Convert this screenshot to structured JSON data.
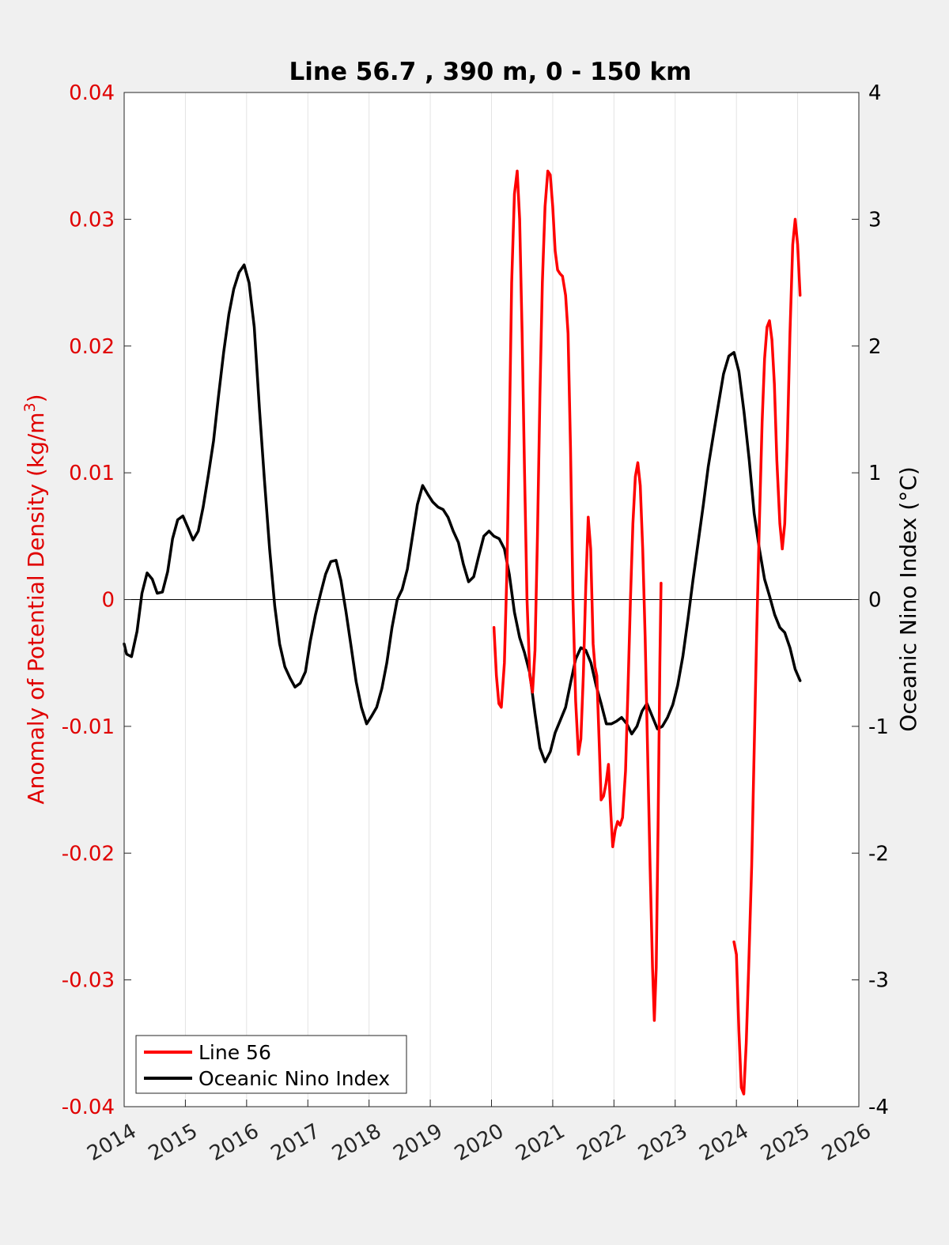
{
  "chart_data": {
    "type": "line",
    "title": "Line 56.7 , 390 m, 0 - 150 km",
    "ylabel_left": "Anomaly of Potential Density (kg/m",
    "ylabel_left_superscript": "3",
    "ylabel_left_close": ")",
    "ylabel_right": "Oceanic Nino Index (°C)",
    "xlim": [
      2014,
      2026
    ],
    "ylim_left": [
      -0.04,
      0.04
    ],
    "ylim_right": [
      -4,
      4
    ],
    "x_ticks": [
      "2014",
      "2015",
      "2016",
      "2017",
      "2018",
      "2019",
      "2020",
      "2021",
      "2022",
      "2023",
      "2024",
      "2025",
      "2026"
    ],
    "y_left_ticks": [
      "0.04",
      "0.03",
      "0.02",
      "0.01",
      "0",
      "-0.01",
      "-0.02",
      "-0.03",
      "-0.04"
    ],
    "y_right_ticks": [
      "4",
      "3",
      "2",
      "1",
      "0",
      "-1",
      "-2",
      "-3",
      "-4"
    ],
    "grid": "vertical",
    "legend_position": "bottom-left",
    "left_axis_color": "#e00000",
    "right_axis_color": "#000000",
    "series": [
      {
        "name": "Line 56",
        "axis": "left",
        "color": "#ff0000",
        "segments": [
          [
            [
              2020.04,
              -0.0022
            ],
            [
              2020.08,
              -0.006
            ],
            [
              2020.12,
              -0.0082
            ],
            [
              2020.16,
              -0.0085
            ],
            [
              2020.21,
              -0.005
            ],
            [
              2020.25,
              0.002
            ],
            [
              2020.29,
              0.013
            ],
            [
              2020.33,
              0.025
            ],
            [
              2020.375,
              0.032
            ],
            [
              2020.42,
              0.0338
            ],
            [
              2020.46,
              0.03
            ],
            [
              2020.5,
              0.021
            ],
            [
              2020.54,
              0.01
            ],
            [
              2020.58,
              0.0
            ],
            [
              2020.625,
              -0.006
            ],
            [
              2020.67,
              -0.0073
            ],
            [
              2020.71,
              -0.004
            ],
            [
              2020.75,
              0.005
            ],
            [
              2020.79,
              0.016
            ],
            [
              2020.83,
              0.025
            ],
            [
              2020.875,
              0.031
            ],
            [
              2020.92,
              0.0338
            ],
            [
              2020.96,
              0.0335
            ],
            [
              2021.0,
              0.031
            ],
            [
              2021.04,
              0.0275
            ],
            [
              2021.08,
              0.026
            ],
            [
              2021.12,
              0.0257
            ],
            [
              2021.16,
              0.0255
            ],
            [
              2021.21,
              0.024
            ],
            [
              2021.25,
              0.021
            ],
            [
              2021.29,
              0.012
            ],
            [
              2021.33,
              0.0
            ],
            [
              2021.375,
              -0.008
            ],
            [
              2021.42,
              -0.0122
            ],
            [
              2021.46,
              -0.011
            ],
            [
              2021.5,
              -0.006
            ],
            [
              2021.54,
              0.001
            ],
            [
              2021.58,
              0.0065
            ],
            [
              2021.62,
              0.004
            ],
            [
              2021.66,
              -0.0035
            ],
            [
              2021.69,
              -0.0053
            ],
            [
              2021.72,
              -0.006
            ],
            [
              2021.76,
              -0.0115
            ],
            [
              2021.79,
              -0.0158
            ],
            [
              2021.83,
              -0.0155
            ],
            [
              2021.87,
              -0.0145
            ],
            [
              2021.91,
              -0.013
            ],
            [
              2021.95,
              -0.017
            ],
            [
              2021.98,
              -0.0195
            ],
            [
              2022.02,
              -0.0182
            ],
            [
              2022.06,
              -0.0175
            ],
            [
              2022.1,
              -0.0178
            ],
            [
              2022.14,
              -0.0172
            ],
            [
              2022.19,
              -0.0135
            ],
            [
              2022.23,
              -0.007
            ],
            [
              2022.27,
              0.0
            ],
            [
              2022.31,
              0.006
            ],
            [
              2022.35,
              0.0097
            ],
            [
              2022.39,
              0.0108
            ],
            [
              2022.43,
              0.009
            ],
            [
              2022.47,
              0.004
            ],
            [
              2022.51,
              -0.003
            ],
            [
              2022.55,
              -0.012
            ],
            [
              2022.59,
              -0.021
            ],
            [
              2022.63,
              -0.029
            ],
            [
              2022.66,
              -0.0332
            ],
            [
              2022.69,
              -0.029
            ],
            [
              2022.72,
              -0.018
            ],
            [
              2022.75,
              -0.005
            ],
            [
              2022.77,
              0.0013
            ]
          ],
          [
            [
              2023.96,
              -0.027
            ],
            [
              2024.0,
              -0.028
            ],
            [
              2024.04,
              -0.034
            ],
            [
              2024.08,
              -0.0385
            ],
            [
              2024.12,
              -0.039
            ],
            [
              2024.16,
              -0.035
            ],
            [
              2024.2,
              -0.029
            ],
            [
              2024.25,
              -0.021
            ],
            [
              2024.29,
              -0.012
            ],
            [
              2024.33,
              -0.003
            ],
            [
              2024.375,
              0.006
            ],
            [
              2024.42,
              0.014
            ],
            [
              2024.46,
              0.019
            ],
            [
              2024.5,
              0.0215
            ],
            [
              2024.54,
              0.022
            ],
            [
              2024.58,
              0.0205
            ],
            [
              2024.62,
              0.017
            ],
            [
              2024.66,
              0.011
            ],
            [
              2024.71,
              0.006
            ],
            [
              2024.75,
              0.004
            ],
            [
              2024.79,
              0.006
            ],
            [
              2024.83,
              0.012
            ],
            [
              2024.875,
              0.021
            ],
            [
              2024.92,
              0.028
            ],
            [
              2024.96,
              0.03
            ],
            [
              2025.0,
              0.028
            ],
            [
              2025.04,
              0.024
            ]
          ]
        ]
      },
      {
        "name": "Oceanic Nino Index",
        "axis": "right",
        "color": "#000000",
        "points": [
          [
            2014.0,
            -0.35
          ],
          [
            2014.04,
            -0.43
          ],
          [
            2014.12,
            -0.45
          ],
          [
            2014.21,
            -0.25
          ],
          [
            2014.29,
            0.05
          ],
          [
            2014.375,
            0.21
          ],
          [
            2014.46,
            0.16
          ],
          [
            2014.54,
            0.05
          ],
          [
            2014.625,
            0.06
          ],
          [
            2014.71,
            0.22
          ],
          [
            2014.79,
            0.48
          ],
          [
            2014.875,
            0.63
          ],
          [
            2014.96,
            0.66
          ],
          [
            2015.04,
            0.57
          ],
          [
            2015.125,
            0.47
          ],
          [
            2015.21,
            0.54
          ],
          [
            2015.29,
            0.73
          ],
          [
            2015.375,
            0.98
          ],
          [
            2015.46,
            1.25
          ],
          [
            2015.54,
            1.6
          ],
          [
            2015.625,
            1.95
          ],
          [
            2015.71,
            2.25
          ],
          [
            2015.79,
            2.45
          ],
          [
            2015.875,
            2.58
          ],
          [
            2015.96,
            2.64
          ],
          [
            2016.04,
            2.5
          ],
          [
            2016.125,
            2.15
          ],
          [
            2016.21,
            1.5
          ],
          [
            2016.29,
            0.95
          ],
          [
            2016.375,
            0.4
          ],
          [
            2016.46,
            -0.05
          ],
          [
            2016.54,
            -0.35
          ],
          [
            2016.625,
            -0.53
          ],
          [
            2016.71,
            -0.62
          ],
          [
            2016.79,
            -0.69
          ],
          [
            2016.875,
            -0.66
          ],
          [
            2016.96,
            -0.57
          ],
          [
            2017.04,
            -0.33
          ],
          [
            2017.125,
            -0.12
          ],
          [
            2017.21,
            0.05
          ],
          [
            2017.29,
            0.2
          ],
          [
            2017.375,
            0.3
          ],
          [
            2017.46,
            0.31
          ],
          [
            2017.54,
            0.15
          ],
          [
            2017.625,
            -0.1
          ],
          [
            2017.71,
            -0.38
          ],
          [
            2017.79,
            -0.65
          ],
          [
            2017.875,
            -0.85
          ],
          [
            2017.96,
            -0.98
          ],
          [
            2018.04,
            -0.92
          ],
          [
            2018.125,
            -0.85
          ],
          [
            2018.21,
            -0.7
          ],
          [
            2018.29,
            -0.5
          ],
          [
            2018.375,
            -0.22
          ],
          [
            2018.46,
            0.0
          ],
          [
            2018.54,
            0.08
          ],
          [
            2018.625,
            0.24
          ],
          [
            2018.71,
            0.5
          ],
          [
            2018.79,
            0.75
          ],
          [
            2018.875,
            0.9
          ],
          [
            2018.96,
            0.83
          ],
          [
            2019.04,
            0.77
          ],
          [
            2019.125,
            0.73
          ],
          [
            2019.21,
            0.71
          ],
          [
            2019.29,
            0.65
          ],
          [
            2019.375,
            0.54
          ],
          [
            2019.46,
            0.45
          ],
          [
            2019.54,
            0.28
          ],
          [
            2019.625,
            0.14
          ],
          [
            2019.71,
            0.18
          ],
          [
            2019.79,
            0.34
          ],
          [
            2019.875,
            0.5
          ],
          [
            2019.96,
            0.54
          ],
          [
            2020.04,
            0.5
          ],
          [
            2020.125,
            0.48
          ],
          [
            2020.21,
            0.4
          ],
          [
            2020.29,
            0.2
          ],
          [
            2020.375,
            -0.1
          ],
          [
            2020.46,
            -0.3
          ],
          [
            2020.54,
            -0.42
          ],
          [
            2020.625,
            -0.58
          ],
          [
            2020.71,
            -0.9
          ],
          [
            2020.79,
            -1.17
          ],
          [
            2020.875,
            -1.28
          ],
          [
            2020.96,
            -1.2
          ],
          [
            2021.04,
            -1.05
          ],
          [
            2021.125,
            -0.95
          ],
          [
            2021.21,
            -0.85
          ],
          [
            2021.29,
            -0.66
          ],
          [
            2021.375,
            -0.47
          ],
          [
            2021.46,
            -0.38
          ],
          [
            2021.54,
            -0.4
          ],
          [
            2021.625,
            -0.5
          ],
          [
            2021.71,
            -0.68
          ],
          [
            2021.79,
            -0.82
          ],
          [
            2021.875,
            -0.98
          ],
          [
            2021.96,
            -0.98
          ],
          [
            2022.04,
            -0.96
          ],
          [
            2022.125,
            -0.93
          ],
          [
            2022.21,
            -0.98
          ],
          [
            2022.29,
            -1.06
          ],
          [
            2022.375,
            -1.0
          ],
          [
            2022.46,
            -0.88
          ],
          [
            2022.54,
            -0.82
          ],
          [
            2022.625,
            -0.92
          ],
          [
            2022.71,
            -1.02
          ],
          [
            2022.79,
            -1.0
          ],
          [
            2022.875,
            -0.93
          ],
          [
            2022.96,
            -0.83
          ],
          [
            2023.04,
            -0.68
          ],
          [
            2023.125,
            -0.45
          ],
          [
            2023.21,
            -0.15
          ],
          [
            2023.29,
            0.15
          ],
          [
            2023.375,
            0.45
          ],
          [
            2023.46,
            0.75
          ],
          [
            2023.54,
            1.05
          ],
          [
            2023.625,
            1.3
          ],
          [
            2023.71,
            1.55
          ],
          [
            2023.79,
            1.78
          ],
          [
            2023.875,
            1.92
          ],
          [
            2023.96,
            1.95
          ],
          [
            2024.04,
            1.8
          ],
          [
            2024.125,
            1.48
          ],
          [
            2024.21,
            1.1
          ],
          [
            2024.29,
            0.68
          ],
          [
            2024.375,
            0.4
          ],
          [
            2024.46,
            0.16
          ],
          [
            2024.54,
            0.03
          ],
          [
            2024.625,
            -0.12
          ],
          [
            2024.71,
            -0.22
          ],
          [
            2024.79,
            -0.26
          ],
          [
            2024.875,
            -0.38
          ],
          [
            2024.96,
            -0.55
          ],
          [
            2025.04,
            -0.64
          ]
        ]
      }
    ]
  }
}
